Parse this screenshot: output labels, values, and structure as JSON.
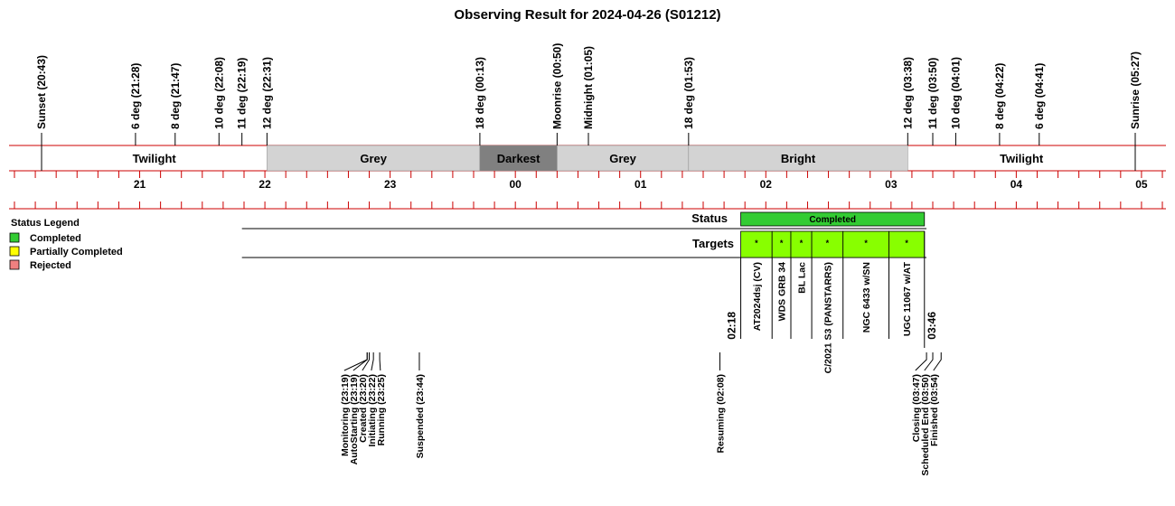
{
  "title": "Observing Result for 2024-04-26 (S01212)",
  "chart_data": {
    "type": "timeline",
    "time_axis": {
      "start": "20:43",
      "end": "05:27",
      "hour_labels": [
        "21",
        "22",
        "23",
        "00",
        "01",
        "02",
        "03",
        "04",
        "05"
      ]
    },
    "sky_events": [
      {
        "label": "Sunset (20:43)",
        "time": "20:43",
        "color": "#000000"
      },
      {
        "label": "6 deg (21:28)",
        "time": "21:28",
        "color": "#000000"
      },
      {
        "label": "8 deg (21:47)",
        "time": "21:47",
        "color": "#000000"
      },
      {
        "label": "10 deg (22:08)",
        "time": "22:08",
        "color": "#000000"
      },
      {
        "label": "11 deg (22:19)",
        "time": "22:19",
        "color": "#000000"
      },
      {
        "label": "12 deg (22:31)",
        "time": "22:31",
        "color": "#000000"
      },
      {
        "label": "18 deg (00:13)",
        "time": "00:13",
        "color": "#000000"
      },
      {
        "label": "Moonrise (00:50)",
        "time": "00:50",
        "color": "#0000cc"
      },
      {
        "label": "Midnight (01:05)",
        "time": "01:05",
        "color": "#000000"
      },
      {
        "label": "18 deg (01:53)",
        "time": "01:53",
        "color": "#000000"
      },
      {
        "label": "12 deg (03:38)",
        "time": "03:38",
        "color": "#000000"
      },
      {
        "label": "11 deg (03:50)",
        "time": "03:50",
        "color": "#000000"
      },
      {
        "label": "10 deg (04:01)",
        "time": "04:01",
        "color": "#000000"
      },
      {
        "label": "8 deg (04:22)",
        "time": "04:22",
        "color": "#000000"
      },
      {
        "label": "6 deg (04:41)",
        "time": "04:41",
        "color": "#000000"
      },
      {
        "label": "Sunrise (05:27)",
        "time": "05:27",
        "color": "#000000"
      }
    ],
    "sky_bands": [
      {
        "label": "Twilight",
        "start": "20:43",
        "end": "22:31",
        "fill": "#ffffff",
        "text_color": "#000000"
      },
      {
        "label": "Grey",
        "start": "22:31",
        "end": "00:13",
        "fill": "#d3d3d3",
        "text_color": "#000000"
      },
      {
        "label": "Darkest",
        "start": "00:13",
        "end": "00:50",
        "fill": "#808080",
        "text_color": "#ffffff"
      },
      {
        "label": "Grey",
        "start": "00:50",
        "end": "01:53",
        "fill": "#d3d3d3",
        "text_color": "#000000"
      },
      {
        "label": "Bright",
        "start": "01:53",
        "end": "03:38",
        "fill": "#d3d3d3",
        "text_color": "#000000"
      },
      {
        "label": "Twilight",
        "start": "03:38",
        "end": "05:27",
        "fill": "#ffffff",
        "text_color": "#000000"
      }
    ],
    "status_row": {
      "label": "Status",
      "bars": [
        {
          "label": "Completed",
          "start": "02:18",
          "end": "03:46",
          "fill": "#33cc33"
        }
      ]
    },
    "targets_row": {
      "label": "Targets",
      "row_start": "22:19",
      "fill": "#88ff00",
      "marker": "*",
      "targets": [
        {
          "name": "AT2024dsj (CV)",
          "start": "02:18",
          "end": "02:33"
        },
        {
          "name": "WDS GRB 34",
          "start": "02:33",
          "end": "02:42"
        },
        {
          "name": "BL Lac",
          "start": "02:42",
          "end": "02:52"
        },
        {
          "name": "C/2021 S3 (PANSTARRS)",
          "start": "02:52",
          "end": "03:07"
        },
        {
          "name": "NGC 6433 w/SN",
          "start": "03:07",
          "end": "03:29"
        },
        {
          "name": "UGC 11067 w/AT",
          "start": "03:29",
          "end": "03:46"
        }
      ],
      "target_color": "#0000cc"
    },
    "time_marks": [
      {
        "label": "02:18",
        "time": "02:18"
      },
      {
        "label": "03:46",
        "time": "03:46"
      }
    ],
    "log_events": [
      {
        "label": "Monitoring (23:19)",
        "time": "23:19",
        "color": "#000000"
      },
      {
        "label": "AutoStarting (23:19)",
        "time": "23:19",
        "color": "#000000"
      },
      {
        "label": "Created (23:20)",
        "time": "23:20",
        "color": "#000000"
      },
      {
        "label": "Initiating (23:22)",
        "time": "23:22",
        "color": "#000000"
      },
      {
        "label": "Running (23:25)",
        "time": "23:25",
        "color": "#000000"
      },
      {
        "label": "Suspended (23:44)",
        "time": "23:44",
        "color": "#ff8000"
      },
      {
        "label": "Resuming (02:08)",
        "time": "02:08",
        "color": "#000000"
      },
      {
        "label": "Closing (03:47)",
        "time": "03:47",
        "color": "#000000"
      },
      {
        "label": "Scheduled End (03:50)",
        "time": "03:50",
        "color": "#000000"
      },
      {
        "label": "Finished (03:54)",
        "time": "03:54",
        "color": "#000000"
      }
    ],
    "legend": {
      "title": "Status Legend",
      "placement": "left",
      "items": [
        {
          "label": "Completed",
          "color": "#33cc33"
        },
        {
          "label": "Partially Completed",
          "color": "#ffff00"
        },
        {
          "label": "Rejected",
          "color": "#f08080"
        }
      ]
    },
    "axis_color": "#cc0000"
  }
}
